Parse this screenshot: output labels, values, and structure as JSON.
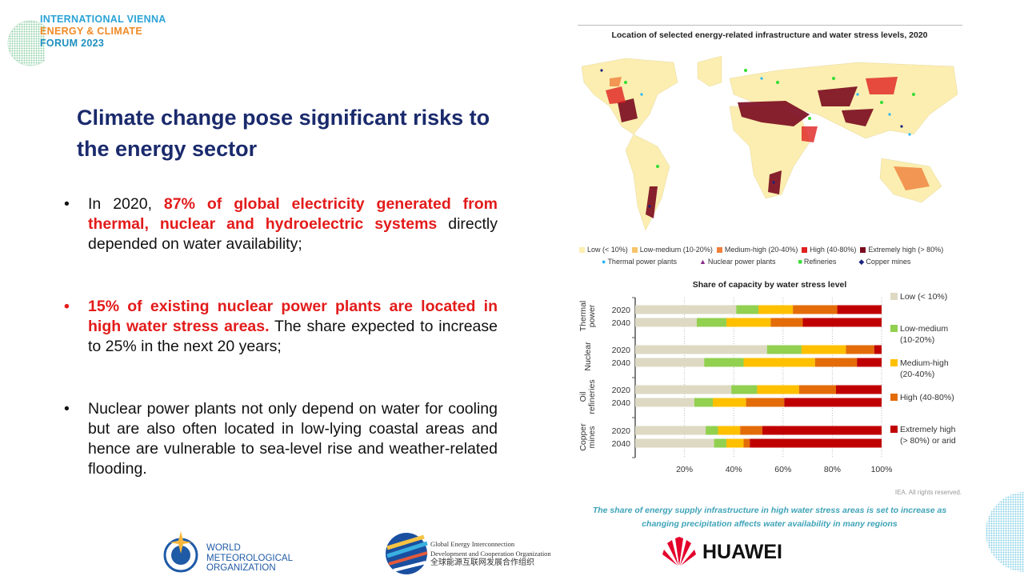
{
  "logo": {
    "line1": "INTERNATIONAL VIENNA",
    "line2": "ENERGY & CLIMATE",
    "line3": "FORUM 2023"
  },
  "slide": {
    "title": "Climate change pose significant risks to the energy sector",
    "bullets": [
      {
        "pre": "In 2020, ",
        "highlight": "87% of global electricity generated from thermal, nuclear and hydroelectric systems",
        "post": " directly depended on water availability;"
      },
      {
        "pre": "",
        "highlight": "15% of existing nuclear power plants are located in high water stress areas.",
        "post": " The  share expected to increase to 25% in the next 20 years;"
      },
      {
        "pre": "Nuclear power plants not only depend on water for cooling but are also often located in low-lying coastal areas and hence are vulnerable to sea-level rise and weather-related flooding.",
        "highlight": "",
        "post": ""
      }
    ]
  },
  "map": {
    "title": "Location of selected energy-related infrastructure and water stress levels, 2020",
    "stress_legend": [
      {
        "label": "Low (< 10%)",
        "color": "#fbeeb0"
      },
      {
        "label": "Low-medium (10-20%)",
        "color": "#f8c46a"
      },
      {
        "label": "Medium-high (20-40%)",
        "color": "#f0803c"
      },
      {
        "label": "High (40-80%)",
        "color": "#e02020"
      },
      {
        "label": "Extremely high (> 80%)",
        "color": "#7a0a1e"
      }
    ],
    "marker_legend": [
      {
        "label": "Thermal power plants",
        "symbol": "●",
        "color": "#2bb5f0"
      },
      {
        "label": "Nuclear power plants",
        "symbol": "▲",
        "color": "#8a2b8a"
      },
      {
        "label": "Refineries",
        "symbol": "■",
        "color": "#33dd33"
      },
      {
        "label": "Copper mines",
        "symbol": "◆",
        "color": "#1a237e"
      }
    ]
  },
  "chart_data": {
    "type": "bar",
    "stacked": true,
    "orientation": "horizontal",
    "title": "Share of capacity by water stress level",
    "groups": [
      "Thermal power",
      "Nuclear",
      "Oil refineries",
      "Copper mines"
    ],
    "years": [
      "2020",
      "2040"
    ],
    "xticks": [
      "20%",
      "40%",
      "60%",
      "80%",
      "100%"
    ],
    "xlim": [
      0,
      100
    ],
    "series": [
      {
        "name": "Low (< 10%)",
        "color": "#ddd9c3",
        "values": [
          41,
          25,
          53.5,
          28,
          39,
          24,
          28.6,
          32
        ]
      },
      {
        "name": "Low-medium (10-20%)",
        "color": "#92d050",
        "values": [
          9,
          12,
          14,
          16,
          10.5,
          7.5,
          5,
          5
        ]
      },
      {
        "name": "Medium-high (20-40%)",
        "color": "#ffc000",
        "values": [
          14,
          18,
          18,
          29,
          17,
          13.5,
          9,
          7
        ]
      },
      {
        "name": "High (40-80%)",
        "color": "#e36c09",
        "values": [
          18,
          13,
          11.5,
          17,
          15,
          15.5,
          9,
          2.5
        ]
      },
      {
        "name": "Extremely high (> 80%) or arid",
        "color": "#c00000",
        "values": [
          18,
          32,
          3,
          10,
          18.5,
          39.5,
          48.4,
          53.5
        ]
      }
    ],
    "legend_lines": [
      [
        "Low (< 10%)"
      ],
      [
        "Low-medium",
        "(10-20%)"
      ],
      [
        "Medium-high",
        "(20-40%)"
      ],
      [
        "High (40-80%)"
      ],
      [
        "Extremely high",
        "(> 80%) or arid"
      ]
    ],
    "legend_position": "right"
  },
  "footer": {
    "copyright": "IEA. All rights reserved.",
    "caption_line1": "The share of energy supply infrastructure in high water stress areas is set to increase as",
    "caption_line2": "changing precipitation affects water availability in many regions"
  },
  "partners": {
    "wmo": [
      "WORLD",
      "METEOROLOGICAL",
      "ORGANIZATION"
    ],
    "geidco": [
      "Global Energy Interconnection",
      "Development and Cooperation Organization",
      "全球能源互联网发展合作组织"
    ],
    "huawei": "HUAWEI"
  }
}
